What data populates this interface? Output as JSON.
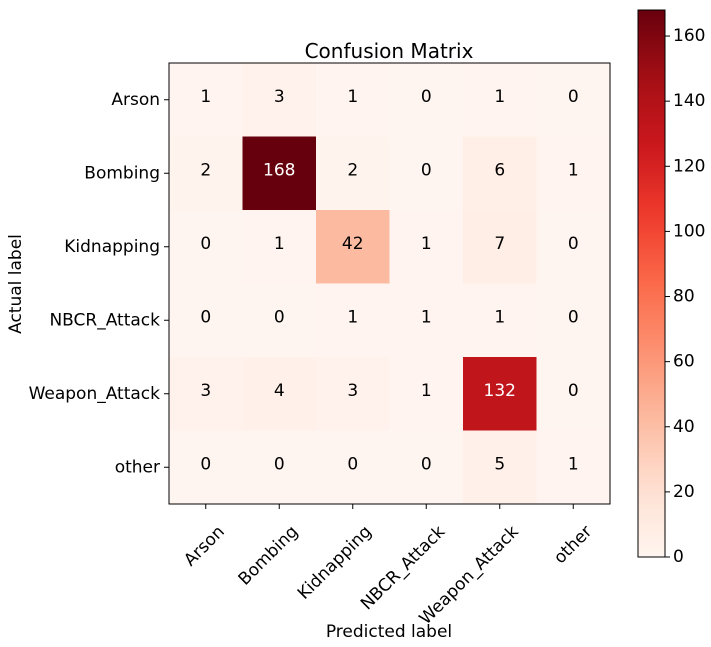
{
  "chart_data": {
    "type": "heatmap",
    "title": "Confusion Matrix",
    "xlabel": "Predicted label",
    "ylabel": "Actual label",
    "row_labels": [
      "Arson",
      "Bombing",
      "Kidnapping",
      "NBCR_Attack",
      "Weapon_Attack",
      "other"
    ],
    "col_labels": [
      "Arson",
      "Bombing",
      "Kidnapping",
      "NBCR_Attack",
      "Weapon_Attack",
      "other"
    ],
    "values": [
      [
        1,
        3,
        1,
        0,
        1,
        0
      ],
      [
        2,
        168,
        2,
        0,
        6,
        1
      ],
      [
        0,
        1,
        42,
        1,
        7,
        0
      ],
      [
        0,
        0,
        1,
        1,
        1,
        0
      ],
      [
        3,
        4,
        3,
        1,
        132,
        0
      ],
      [
        0,
        0,
        0,
        0,
        5,
        1
      ]
    ],
    "vmin": 0,
    "vmax": 168,
    "colormap": "Reds",
    "colorbar": {
      "ticks": [
        0,
        20,
        40,
        60,
        80,
        100,
        120,
        140,
        160
      ]
    },
    "grid": false
  }
}
